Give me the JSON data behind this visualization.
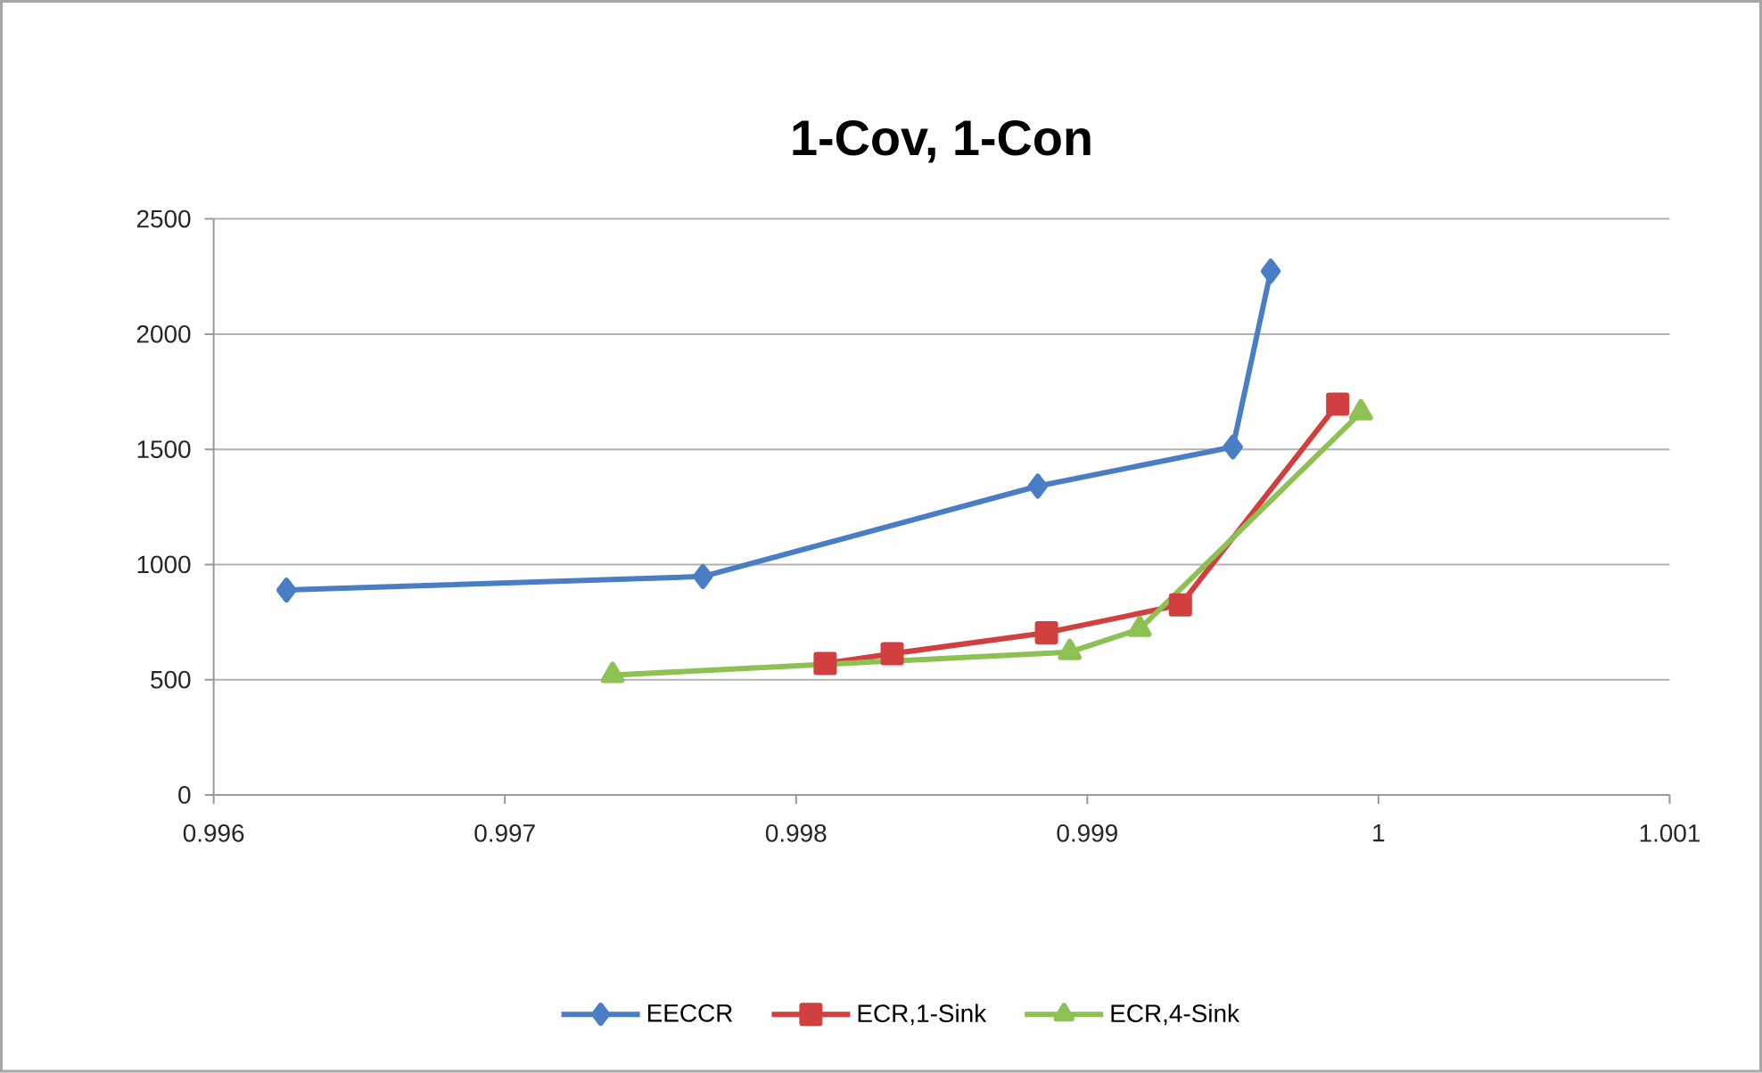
{
  "chart_data": {
    "type": "line",
    "title": "1-Cov, 1-Con",
    "xlim": [
      0.996,
      1.001
    ],
    "xticks": [
      0.996,
      0.997,
      0.998,
      0.999,
      1,
      1.001
    ],
    "ylim": [
      0,
      2500
    ],
    "yticks": [
      0,
      500,
      1000,
      1500,
      2000,
      2500
    ],
    "grid": "y",
    "legend": "bottom",
    "line_style": "solid",
    "series": [
      {
        "name": "EECCR",
        "color": "#4a7ec4",
        "marker": "diamond",
        "x": [
          0.99625,
          0.99768,
          0.99883,
          0.9995,
          0.99963
        ],
        "values": [
          889,
          948,
          1340,
          1510,
          2273
        ]
      },
      {
        "name": "ECR,1-Sink",
        "color": "#d23f3f",
        "marker": "square",
        "x": [
          0.9981,
          0.99833,
          0.99886,
          0.99932,
          0.99986
        ],
        "values": [
          570,
          613,
          704,
          825,
          1696
        ]
      },
      {
        "name": "ECR,4-Sink",
        "color": "#8dc153",
        "marker": "triangle",
        "x": [
          0.99737,
          0.99894,
          0.99918,
          0.99994
        ],
        "values": [
          520,
          620,
          720,
          1660
        ]
      }
    ]
  }
}
